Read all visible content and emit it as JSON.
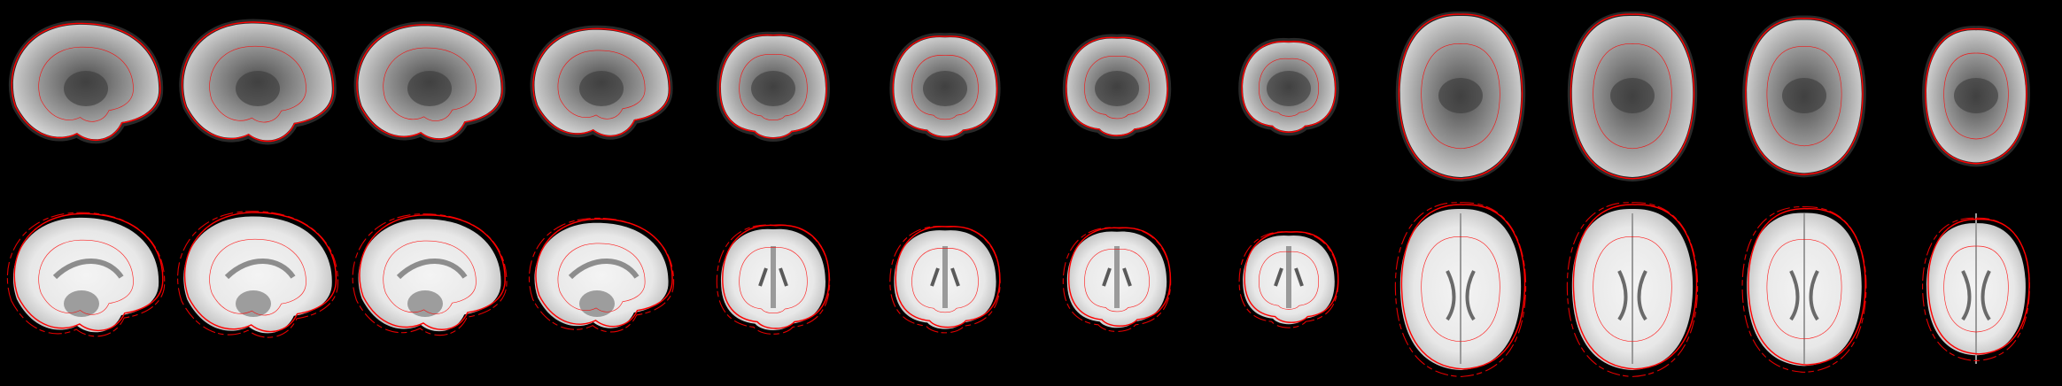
{
  "figure": {
    "background": "#000000",
    "contour_color": "#ff0000",
    "rows": [
      {
        "id": "functional",
        "tissue": "epi",
        "panels": [
          {
            "view": "sagittal",
            "variant": 1
          },
          {
            "view": "sagittal",
            "variant": 2
          },
          {
            "view": "sagittal",
            "variant": 3
          },
          {
            "view": "sagittal",
            "variant": 4
          },
          {
            "view": "coronal",
            "variant": 1
          },
          {
            "view": "coronal",
            "variant": 2
          },
          {
            "view": "coronal",
            "variant": 3
          },
          {
            "view": "coronal",
            "variant": 4
          },
          {
            "view": "axial",
            "variant": 1
          },
          {
            "view": "axial",
            "variant": 2
          },
          {
            "view": "axial",
            "variant": 3
          },
          {
            "view": "axial",
            "variant": 4
          }
        ]
      },
      {
        "id": "template",
        "tissue": "t1",
        "panels": [
          {
            "view": "sagittal",
            "variant": 1
          },
          {
            "view": "sagittal",
            "variant": 2
          },
          {
            "view": "sagittal",
            "variant": 3
          },
          {
            "view": "sagittal",
            "variant": 4
          },
          {
            "view": "coronal",
            "variant": 1
          },
          {
            "view": "coronal",
            "variant": 2
          },
          {
            "view": "coronal",
            "variant": 3
          },
          {
            "view": "coronal",
            "variant": 4
          },
          {
            "view": "axial",
            "variant": 1
          },
          {
            "view": "axial",
            "variant": 2
          },
          {
            "view": "axial",
            "variant": 3
          },
          {
            "view": "axial",
            "variant": 4
          }
        ]
      }
    ]
  }
}
